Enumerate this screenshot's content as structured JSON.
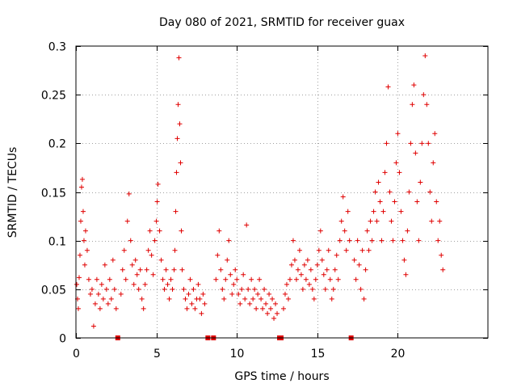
{
  "chart_data": {
    "type": "scatter",
    "title": "Day 080 of 2021, SRMTID for receiver guax",
    "xlabel": "GPS time / hours",
    "ylabel": "SRMTID / TECUs",
    "xlim": [
      0,
      25.6
    ],
    "ylim": [
      0,
      0.3
    ],
    "xticks": [
      0,
      5,
      10,
      15,
      20
    ],
    "xtick_labels": [
      "0",
      "5",
      "10",
      "15",
      "20"
    ],
    "yticks": [
      0,
      0.05,
      0.1,
      0.15,
      0.2,
      0.25,
      0.3
    ],
    "ytick_labels": [
      "0",
      "0.05",
      "0.1",
      "0.15",
      "0.2",
      "0.25",
      "0.3"
    ],
    "grid": true,
    "marker": "+",
    "color": "#e00000",
    "data_gaps_hours": [
      2.6,
      8.2,
      8.55,
      12.65,
      12.75,
      17.1
    ],
    "points": [
      [
        0.05,
        0.055
      ],
      [
        0.1,
        0.04
      ],
      [
        0.15,
        0.03
      ],
      [
        0.2,
        0.062
      ],
      [
        0.25,
        0.085
      ],
      [
        0.3,
        0.12
      ],
      [
        0.35,
        0.155
      ],
      [
        0.4,
        0.163
      ],
      [
        0.45,
        0.13
      ],
      [
        0.5,
        0.1
      ],
      [
        0.55,
        0.075
      ],
      [
        0.6,
        0.11
      ],
      [
        0.7,
        0.09
      ],
      [
        0.8,
        0.06
      ],
      [
        0.9,
        0.045
      ],
      [
        1.0,
        0.05
      ],
      [
        1.1,
        0.012
      ],
      [
        1.2,
        0.035
      ],
      [
        1.3,
        0.06
      ],
      [
        1.4,
        0.045
      ],
      [
        1.5,
        0.03
      ],
      [
        1.6,
        0.055
      ],
      [
        1.7,
        0.04
      ],
      [
        1.8,
        0.075
      ],
      [
        1.9,
        0.05
      ],
      [
        2.0,
        0.035
      ],
      [
        2.1,
        0.06
      ],
      [
        2.2,
        0.04
      ],
      [
        2.3,
        0.08
      ],
      [
        2.4,
        0.05
      ],
      [
        2.5,
        0.03
      ],
      [
        2.8,
        0.045
      ],
      [
        2.9,
        0.07
      ],
      [
        3.0,
        0.09
      ],
      [
        3.1,
        0.06
      ],
      [
        3.2,
        0.12
      ],
      [
        3.3,
        0.148
      ],
      [
        3.4,
        0.1
      ],
      [
        3.5,
        0.075
      ],
      [
        3.6,
        0.055
      ],
      [
        3.7,
        0.08
      ],
      [
        3.8,
        0.065
      ],
      [
        3.9,
        0.05
      ],
      [
        4.0,
        0.07
      ],
      [
        4.1,
        0.04
      ],
      [
        4.2,
        0.03
      ],
      [
        4.3,
        0.055
      ],
      [
        4.4,
        0.07
      ],
      [
        4.5,
        0.09
      ],
      [
        4.6,
        0.11
      ],
      [
        4.7,
        0.085
      ],
      [
        4.8,
        0.065
      ],
      [
        4.9,
        0.1
      ],
      [
        5.0,
        0.12
      ],
      [
        5.05,
        0.14
      ],
      [
        5.1,
        0.158
      ],
      [
        5.2,
        0.11
      ],
      [
        5.3,
        0.08
      ],
      [
        5.4,
        0.06
      ],
      [
        5.5,
        0.05
      ],
      [
        5.6,
        0.07
      ],
      [
        5.7,
        0.055
      ],
      [
        5.8,
        0.04
      ],
      [
        5.9,
        0.06
      ],
      [
        6.0,
        0.05
      ],
      [
        6.1,
        0.07
      ],
      [
        6.15,
        0.09
      ],
      [
        6.2,
        0.13
      ],
      [
        6.25,
        0.17
      ],
      [
        6.3,
        0.205
      ],
      [
        6.35,
        0.24
      ],
      [
        6.4,
        0.288
      ],
      [
        6.45,
        0.22
      ],
      [
        6.5,
        0.18
      ],
      [
        6.55,
        0.11
      ],
      [
        6.6,
        0.07
      ],
      [
        6.7,
        0.05
      ],
      [
        6.8,
        0.04
      ],
      [
        6.9,
        0.03
      ],
      [
        7.0,
        0.045
      ],
      [
        7.1,
        0.06
      ],
      [
        7.2,
        0.035
      ],
      [
        7.3,
        0.05
      ],
      [
        7.4,
        0.03
      ],
      [
        7.5,
        0.04
      ],
      [
        7.6,
        0.055
      ],
      [
        7.7,
        0.04
      ],
      [
        7.8,
        0.025
      ],
      [
        7.9,
        0.045
      ],
      [
        8.0,
        0.035
      ],
      [
        8.7,
        0.06
      ],
      [
        8.8,
        0.085
      ],
      [
        8.9,
        0.11
      ],
      [
        9.0,
        0.07
      ],
      [
        9.1,
        0.05
      ],
      [
        9.2,
        0.04
      ],
      [
        9.3,
        0.06
      ],
      [
        9.4,
        0.08
      ],
      [
        9.5,
        0.1
      ],
      [
        9.6,
        0.065
      ],
      [
        9.7,
        0.045
      ],
      [
        9.8,
        0.055
      ],
      [
        9.9,
        0.07
      ],
      [
        10.0,
        0.06
      ],
      [
        10.1,
        0.045
      ],
      [
        10.2,
        0.035
      ],
      [
        10.3,
        0.05
      ],
      [
        10.4,
        0.065
      ],
      [
        10.5,
        0.04
      ],
      [
        10.6,
        0.116
      ],
      [
        10.7,
        0.05
      ],
      [
        10.8,
        0.035
      ],
      [
        10.9,
        0.06
      ],
      [
        11.0,
        0.04
      ],
      [
        11.1,
        0.05
      ],
      [
        11.2,
        0.03
      ],
      [
        11.3,
        0.045
      ],
      [
        11.4,
        0.06
      ],
      [
        11.5,
        0.04
      ],
      [
        11.6,
        0.03
      ],
      [
        11.7,
        0.05
      ],
      [
        11.8,
        0.035
      ],
      [
        11.9,
        0.025
      ],
      [
        12.0,
        0.045
      ],
      [
        12.1,
        0.03
      ],
      [
        12.2,
        0.04
      ],
      [
        12.3,
        0.02
      ],
      [
        12.4,
        0.035
      ],
      [
        12.5,
        0.025
      ],
      [
        12.9,
        0.03
      ],
      [
        13.0,
        0.045
      ],
      [
        13.1,
        0.055
      ],
      [
        13.2,
        0.04
      ],
      [
        13.3,
        0.06
      ],
      [
        13.4,
        0.075
      ],
      [
        13.5,
        0.1
      ],
      [
        13.6,
        0.08
      ],
      [
        13.7,
        0.06
      ],
      [
        13.8,
        0.07
      ],
      [
        13.9,
        0.09
      ],
      [
        14.0,
        0.065
      ],
      [
        14.1,
        0.05
      ],
      [
        14.2,
        0.075
      ],
      [
        14.3,
        0.06
      ],
      [
        14.4,
        0.08
      ],
      [
        14.5,
        0.055
      ],
      [
        14.6,
        0.07
      ],
      [
        14.7,
        0.05
      ],
      [
        14.8,
        0.04
      ],
      [
        14.9,
        0.06
      ],
      [
        15.0,
        0.075
      ],
      [
        15.1,
        0.09
      ],
      [
        15.2,
        0.11
      ],
      [
        15.3,
        0.08
      ],
      [
        15.4,
        0.065
      ],
      [
        15.5,
        0.05
      ],
      [
        15.6,
        0.07
      ],
      [
        15.7,
        0.09
      ],
      [
        15.8,
        0.06
      ],
      [
        15.9,
        0.04
      ],
      [
        16.0,
        0.05
      ],
      [
        16.1,
        0.07
      ],
      [
        16.2,
        0.085
      ],
      [
        16.3,
        0.06
      ],
      [
        16.4,
        0.1
      ],
      [
        16.5,
        0.12
      ],
      [
        16.6,
        0.145
      ],
      [
        16.7,
        0.11
      ],
      [
        16.8,
        0.09
      ],
      [
        16.9,
        0.13
      ],
      [
        17.0,
        0.1
      ],
      [
        17.3,
        0.08
      ],
      [
        17.4,
        0.06
      ],
      [
        17.5,
        0.1
      ],
      [
        17.6,
        0.075
      ],
      [
        17.7,
        0.05
      ],
      [
        17.8,
        0.09
      ],
      [
        17.9,
        0.04
      ],
      [
        18.0,
        0.07
      ],
      [
        18.1,
        0.11
      ],
      [
        18.2,
        0.09
      ],
      [
        18.3,
        0.12
      ],
      [
        18.4,
        0.1
      ],
      [
        18.5,
        0.13
      ],
      [
        18.6,
        0.15
      ],
      [
        18.7,
        0.12
      ],
      [
        18.8,
        0.16
      ],
      [
        18.9,
        0.14
      ],
      [
        19.0,
        0.1
      ],
      [
        19.1,
        0.13
      ],
      [
        19.2,
        0.17
      ],
      [
        19.3,
        0.2
      ],
      [
        19.4,
        0.258
      ],
      [
        19.5,
        0.15
      ],
      [
        19.6,
        0.12
      ],
      [
        19.7,
        0.1
      ],
      [
        19.8,
        0.14
      ],
      [
        19.9,
        0.18
      ],
      [
        20.0,
        0.21
      ],
      [
        20.1,
        0.17
      ],
      [
        20.2,
        0.13
      ],
      [
        20.3,
        0.1
      ],
      [
        20.4,
        0.08
      ],
      [
        20.5,
        0.065
      ],
      [
        20.6,
        0.11
      ],
      [
        20.7,
        0.15
      ],
      [
        20.8,
        0.2
      ],
      [
        20.9,
        0.24
      ],
      [
        21.0,
        0.26
      ],
      [
        21.1,
        0.19
      ],
      [
        21.2,
        0.14
      ],
      [
        21.3,
        0.1
      ],
      [
        21.4,
        0.16
      ],
      [
        21.5,
        0.2
      ],
      [
        21.6,
        0.25
      ],
      [
        21.7,
        0.29
      ],
      [
        21.8,
        0.24
      ],
      [
        21.9,
        0.2
      ],
      [
        22.0,
        0.15
      ],
      [
        22.1,
        0.12
      ],
      [
        22.2,
        0.18
      ],
      [
        22.3,
        0.21
      ],
      [
        22.4,
        0.14
      ],
      [
        22.5,
        0.1
      ],
      [
        22.6,
        0.12
      ],
      [
        22.7,
        0.085
      ],
      [
        22.8,
        0.07
      ]
    ]
  }
}
